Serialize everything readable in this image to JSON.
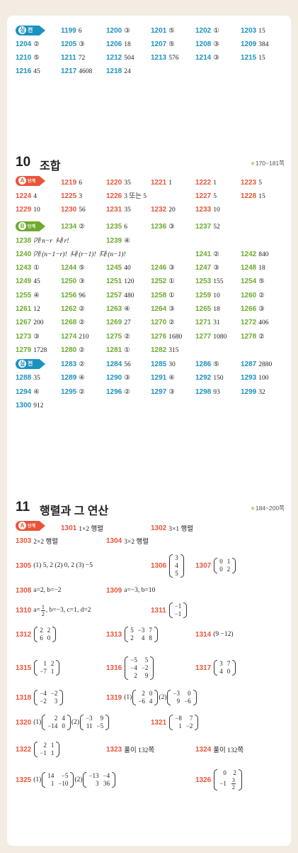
{
  "colors": {
    "teal": "#1b92c0",
    "red": "#e9543a",
    "green": "#6dab2d",
    "background": "#f3ece3"
  },
  "sec9_silchun": {
    "badge": {
      "circle": "실",
      "text": "전"
    },
    "rows": [
      [
        {
          "n": "1199",
          "v": "6"
        },
        {
          "n": "1200",
          "v": "③"
        },
        {
          "n": "1201",
          "v": "⑤"
        },
        {
          "n": "1202",
          "v": "①"
        },
        {
          "n": "1203",
          "v": "15"
        }
      ],
      [
        {
          "n": "1204",
          "v": "②"
        },
        {
          "n": "1205",
          "v": "③"
        },
        {
          "n": "1206",
          "v": "18"
        },
        {
          "n": "1207",
          "v": "⑤"
        },
        {
          "n": "1208",
          "v": "③"
        },
        {
          "n": "1209",
          "v": "384"
        }
      ],
      [
        {
          "n": "1210",
          "v": "⑤"
        },
        {
          "n": "1211",
          "v": "72"
        },
        {
          "n": "1212",
          "v": "504"
        },
        {
          "n": "1213",
          "v": "576"
        },
        {
          "n": "1214",
          "v": "③"
        },
        {
          "n": "1215",
          "v": "15"
        }
      ],
      [
        {
          "n": "1216",
          "v": "45"
        },
        {
          "n": "1217",
          "v": "4608"
        },
        {
          "n": "1218",
          "v": "24"
        }
      ]
    ]
  },
  "sec10": {
    "number": "10",
    "name": "조합",
    "range_star": "★",
    "range": "170~181쪽",
    "badgeA": {
      "circle": "A",
      "text": "단계"
    },
    "badgeB": {
      "circle": "B",
      "text": "단계"
    },
    "badgeS": {
      "circle": "실",
      "text": "전"
    },
    "a_rows": [
      [
        {
          "n": "1219",
          "v": "6"
        },
        {
          "n": "1220",
          "v": "35"
        },
        {
          "n": "1221",
          "v": "1"
        },
        {
          "n": "1222",
          "v": "1"
        },
        {
          "n": "1223",
          "v": "5"
        }
      ],
      [
        {
          "n": "1224",
          "v": "4"
        },
        {
          "n": "1225",
          "v": "3"
        },
        {
          "n": "1226",
          "v": "3 또는 5"
        },
        {
          "n": "1227",
          "v": "5"
        },
        {
          "n": "1228",
          "v": "15"
        }
      ],
      [
        {
          "n": "1229",
          "v": "10"
        },
        {
          "n": "1230",
          "v": "56"
        },
        {
          "n": "1231",
          "v": "35"
        },
        {
          "n": "1232",
          "v": "20"
        },
        {
          "n": "1233",
          "v": "10"
        }
      ]
    ],
    "b_row0": [
      {
        "n": "1234",
        "v": "②"
      },
      {
        "n": "1235",
        "v": "6"
      },
      {
        "n": "1236",
        "v": "③"
      },
      {
        "n": "1237",
        "v": "52"
      }
    ],
    "b_1238": {
      "n": "1238",
      "a": "㈎ n−r",
      "b": "㈏ r!"
    },
    "b_1239": {
      "n": "1239",
      "v": "④"
    },
    "b_1240": {
      "n": "1240",
      "a": "㈎ (n−1−r)!",
      "b": "㈏ (r−1)!",
      "c": "㈐ (n−1)!"
    },
    "b_1241": {
      "n": "1241",
      "v": "②"
    },
    "b_1242": {
      "n": "1242",
      "v": "840"
    },
    "b_rows": [
      [
        {
          "n": "1243",
          "v": "①"
        },
        {
          "n": "1244",
          "v": "⑤"
        },
        {
          "n": "1245",
          "v": "40"
        },
        {
          "n": "1246",
          "v": "③"
        },
        {
          "n": "1247",
          "v": "③"
        },
        {
          "n": "1248",
          "v": "18"
        }
      ],
      [
        {
          "n": "1249",
          "v": "45"
        },
        {
          "n": "1250",
          "v": "③"
        },
        {
          "n": "1251",
          "v": "120"
        },
        {
          "n": "1252",
          "v": "①"
        },
        {
          "n": "1253",
          "v": "155"
        },
        {
          "n": "1254",
          "v": "⑤"
        }
      ],
      [
        {
          "n": "1255",
          "v": "④"
        },
        {
          "n": "1256",
          "v": "96"
        },
        {
          "n": "1257",
          "v": "480"
        },
        {
          "n": "1258",
          "v": "①"
        },
        {
          "n": "1259",
          "v": "10"
        },
        {
          "n": "1260",
          "v": "②"
        }
      ],
      [
        {
          "n": "1261",
          "v": "12"
        },
        {
          "n": "1262",
          "v": "②"
        },
        {
          "n": "1263",
          "v": "④"
        },
        {
          "n": "1264",
          "v": "③"
        },
        {
          "n": "1265",
          "v": "18"
        },
        {
          "n": "1266",
          "v": "③"
        }
      ],
      [
        {
          "n": "1267",
          "v": "200"
        },
        {
          "n": "1268",
          "v": "②"
        },
        {
          "n": "1269",
          "v": "27"
        },
        {
          "n": "1270",
          "v": "②"
        },
        {
          "n": "1271",
          "v": "31"
        },
        {
          "n": "1272",
          "v": "406"
        }
      ],
      [
        {
          "n": "1273",
          "v": "③"
        },
        {
          "n": "1274",
          "v": "210"
        },
        {
          "n": "1275",
          "v": "②"
        },
        {
          "n": "1276",
          "v": "1680"
        },
        {
          "n": "1277",
          "v": "1080"
        },
        {
          "n": "1278",
          "v": "②"
        }
      ],
      [
        {
          "n": "1279",
          "v": "1728"
        },
        {
          "n": "1280",
          "v": "②"
        },
        {
          "n": "1281",
          "v": "①"
        },
        {
          "n": "1282",
          "v": "315"
        }
      ]
    ],
    "s_rows": [
      [
        {
          "n": "1283",
          "v": "②"
        },
        {
          "n": "1284",
          "v": "56"
        },
        {
          "n": "1285",
          "v": "30"
        },
        {
          "n": "1286",
          "v": "⑤"
        },
        {
          "n": "1287",
          "v": "2880"
        }
      ],
      [
        {
          "n": "1288",
          "v": "35"
        },
        {
          "n": "1289",
          "v": "④"
        },
        {
          "n": "1290",
          "v": "③"
        },
        {
          "n": "1291",
          "v": "④"
        },
        {
          "n": "1292",
          "v": "150"
        },
        {
          "n": "1293",
          "v": "100"
        }
      ],
      [
        {
          "n": "1294",
          "v": "④"
        },
        {
          "n": "1295",
          "v": "②"
        },
        {
          "n": "1296",
          "v": "②"
        },
        {
          "n": "1297",
          "v": "③"
        },
        {
          "n": "1298",
          "v": "93"
        },
        {
          "n": "1299",
          "v": "32"
        }
      ],
      [
        {
          "n": "1300",
          "v": "912"
        }
      ]
    ]
  },
  "sec11": {
    "number": "11",
    "name": "행렬과 그 연산",
    "range_star": "★",
    "range": "184~200쪽",
    "badgeA": {
      "circle": "A",
      "text": "단계"
    },
    "q1301": {
      "n": "1301",
      "v": "1×2 행렬"
    },
    "q1302": {
      "n": "1302",
      "v": "3×1 행렬"
    },
    "q1303": {
      "n": "1303",
      "v": "2×2 행렬"
    },
    "q1304": {
      "n": "1304",
      "v": "3×2 행렬"
    },
    "q1305": {
      "n": "1305",
      "v": "(1) 5, 2   (2) 0, 2   (3) −5"
    },
    "q1306": {
      "n": "1306",
      "m": [
        [
          "3"
        ],
        [
          "4"
        ],
        [
          "5"
        ]
      ]
    },
    "q1307": {
      "n": "1307",
      "m": [
        [
          "0",
          "1"
        ],
        [
          "0",
          "2"
        ]
      ]
    },
    "q1308": {
      "n": "1308",
      "v": "a=2, b=−2"
    },
    "q1309": {
      "n": "1309",
      "v": "a=−3, b=10"
    },
    "q1310": {
      "n": "1310",
      "pre": "a=",
      "fn": "1",
      "fd": "2",
      "post": ", b=−3, c=1, d=2"
    },
    "q1311": {
      "n": "1311",
      "m": [
        [
          "−1"
        ],
        [
          "−1"
        ]
      ]
    },
    "q1312": {
      "n": "1312",
      "m": [
        [
          "2",
          "2"
        ],
        [
          "6",
          "0"
        ]
      ]
    },
    "q1313": {
      "n": "1313",
      "m": [
        [
          "5",
          "−3",
          "7"
        ],
        [
          "2",
          "4",
          "8"
        ]
      ]
    },
    "q1314": {
      "n": "1314",
      "v": "(9   −12)"
    },
    "q1315": {
      "n": "1315",
      "m": [
        [
          "1",
          "2"
        ],
        [
          "−7",
          "1"
        ]
      ]
    },
    "q1316": {
      "n": "1316",
      "m": [
        [
          "−5",
          "5"
        ],
        [
          "−4",
          "−2"
        ],
        [
          "2",
          "9"
        ]
      ]
    },
    "q1317": {
      "n": "1317",
      "m": [
        [
          "3",
          "7"
        ],
        [
          "4",
          "0"
        ]
      ]
    },
    "q1318": {
      "n": "1318",
      "m": [
        [
          "−4",
          "−2"
        ],
        [
          "−2",
          "3"
        ]
      ]
    },
    "q1319": {
      "n": "1319",
      "p1": "(1)",
      "m1": [
        [
          "2",
          "0"
        ],
        [
          "−6",
          "4"
        ]
      ],
      "p2": "(2)",
      "m2": [
        [
          "−3",
          "0"
        ],
        [
          "9",
          "−6"
        ]
      ]
    },
    "q1320": {
      "n": "1320",
      "p1": "(1)",
      "m1": [
        [
          "2",
          "4"
        ],
        [
          "−14",
          "0"
        ]
      ],
      "p2": "(2)",
      "m2": [
        [
          "−3",
          "9"
        ],
        [
          "11",
          "−5"
        ]
      ]
    },
    "q1321": {
      "n": "1321",
      "m": [
        [
          "−8",
          "7"
        ],
        [
          "1",
          "−2"
        ]
      ]
    },
    "q1322": {
      "n": "1322",
      "m": [
        [
          "2",
          "1"
        ],
        [
          "−1",
          "1"
        ]
      ]
    },
    "q1323": {
      "n": "1323",
      "v": "풀이 132쪽"
    },
    "q1324": {
      "n": "1324",
      "v": "풀이 132쪽"
    },
    "q1325": {
      "n": "1325",
      "p1": "(1)",
      "m1": [
        [
          "14",
          "−5"
        ],
        [
          "1",
          "−10"
        ]
      ],
      "p2": "(2)",
      "m2": [
        [
          "−13",
          "−4"
        ],
        [
          "3",
          "36"
        ]
      ]
    },
    "q1326": {
      "n": "1326",
      "m": [
        [
          "0",
          "2"
        ],
        [
          "−1",
          "3/2"
        ]
      ]
    }
  }
}
